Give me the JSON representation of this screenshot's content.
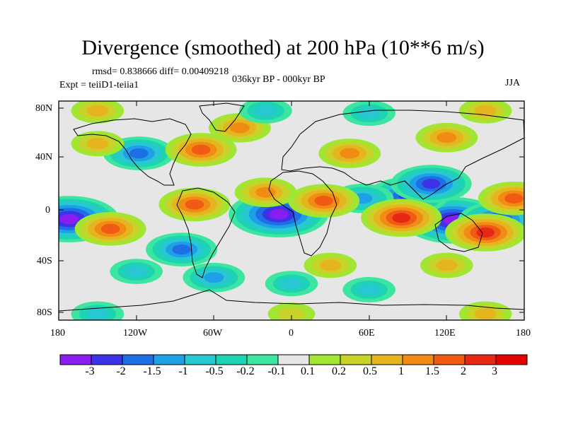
{
  "title": "Divergence (smoothed) at 200 hPa (10**6 m/s)",
  "stats": "rmsd= 0.838666 diff= 0.00409218",
  "experiment": "Expt = teiiD1-teiia1",
  "period": "036kyr BP - 000kyr BP",
  "season": "JJA",
  "y_ticks": [
    "80N",
    "40N",
    "0",
    "40S",
    "80S"
  ],
  "x_ticks": [
    "180",
    "120W",
    "60W",
    "0",
    "60E",
    "120E",
    "180"
  ],
  "colorbar": {
    "labels": [
      "-3",
      "-2",
      "-1.5",
      "-1",
      "-0.5",
      "-0.2",
      "-0.1",
      "0.1",
      "0.2",
      "0.5",
      "1",
      "1.5",
      "2",
      "3"
    ],
    "colors": [
      "#8a1ef0",
      "#3c32e6",
      "#1e6ee6",
      "#1ea0e6",
      "#28c8d2",
      "#1ed2b4",
      "#3ce6a0",
      "#e6e6e6",
      "#a0e632",
      "#c8d228",
      "#e6b41e",
      "#f08c14",
      "#f05a14",
      "#e62814",
      "#e60000"
    ]
  },
  "chart_data": {
    "type": "heatmap",
    "title": "Divergence (smoothed) at 200 hPa (10**6 m/s)",
    "xlim": [
      -180,
      180
    ],
    "ylim": [
      -90,
      90
    ],
    "levels": [
      -3,
      -2,
      -1.5,
      -1,
      -0.5,
      -0.2,
      -0.1,
      0.1,
      0.2,
      0.5,
      1,
      1.5,
      2,
      3
    ],
    "features": [
      {
        "lon": -172,
        "lat": -7,
        "value": -3
      },
      {
        "lon": -10,
        "lat": -3,
        "value": -3
      },
      {
        "lon": 125,
        "lat": -8,
        "value": -3
      },
      {
        "lon": 160,
        "lat": -8,
        "value": -2
      },
      {
        "lon": 90,
        "lat": 12,
        "value": -2
      },
      {
        "lon": 108,
        "lat": 22,
        "value": -2
      },
      {
        "lon": -85,
        "lat": -32,
        "value": -1.5
      },
      {
        "lon": -118,
        "lat": 47,
        "value": -1.5
      },
      {
        "lon": -60,
        "lat": -55,
        "value": -1
      },
      {
        "lon": 55,
        "lat": 10,
        "value": -1
      },
      {
        "lon": -140,
        "lat": -15,
        "value": 1.5
      },
      {
        "lon": -75,
        "lat": 5,
        "value": 1.5
      },
      {
        "lon": -20,
        "lat": 15,
        "value": 1
      },
      {
        "lon": 25,
        "lat": 8,
        "value": 1.5
      },
      {
        "lon": 85,
        "lat": -6,
        "value": 2
      },
      {
        "lon": 150,
        "lat": -18,
        "value": 2
      },
      {
        "lon": 172,
        "lat": 10,
        "value": 1.5
      },
      {
        "lon": -70,
        "lat": 50,
        "value": 1.5
      },
      {
        "lon": -40,
        "lat": 68,
        "value": 1
      },
      {
        "lon": 45,
        "lat": 47,
        "value": 1
      },
      {
        "lon": 120,
        "lat": 60,
        "value": 1
      },
      {
        "lon": -150,
        "lat": 55,
        "value": 0.5
      },
      {
        "lon": 30,
        "lat": -45,
        "value": 0.5
      },
      {
        "lon": 120,
        "lat": -45,
        "value": 0.5
      },
      {
        "lon": -120,
        "lat": -50,
        "value": -0.5
      },
      {
        "lon": 0,
        "lat": -60,
        "value": -0.5
      },
      {
        "lon": 60,
        "lat": -65,
        "value": -0.5
      },
      {
        "lon": -20,
        "lat": 82,
        "value": -0.5
      },
      {
        "lon": 60,
        "lat": 80,
        "value": -0.5
      },
      {
        "lon": -150,
        "lat": 82,
        "value": 0.5
      },
      {
        "lon": 150,
        "lat": 82,
        "value": 0.5
      },
      {
        "lon": 0,
        "lat": -85,
        "value": 0.2
      },
      {
        "lon": 150,
        "lat": -85,
        "value": 0.5
      },
      {
        "lon": -150,
        "lat": -85,
        "value": -0.5
      }
    ]
  }
}
